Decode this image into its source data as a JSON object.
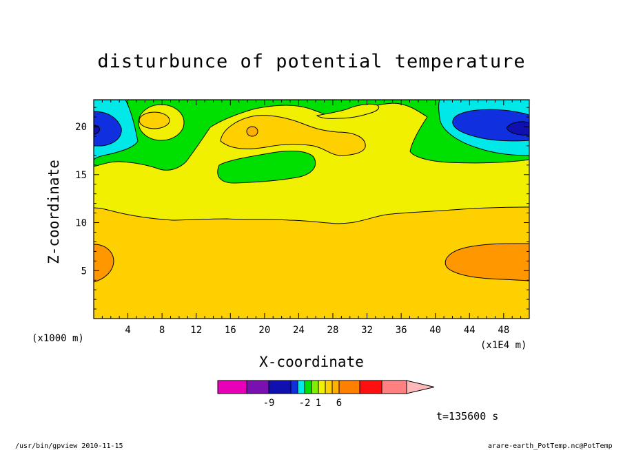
{
  "chart_data": {
    "type": "heatmap",
    "title": "disturbunce of potential temperature",
    "xlabel": "X-coordinate",
    "ylabel": "Z-coordinate",
    "x_unit_left": "(x1000 m)",
    "x_unit_right": "(x1E4 m)",
    "xlim": [
      0,
      51
    ],
    "ylim": [
      0,
      22.8
    ],
    "x_ticks": [
      4,
      8,
      12,
      16,
      20,
      24,
      28,
      32,
      36,
      40,
      44,
      48
    ],
    "y_ticks": [
      5,
      10,
      15,
      20
    ],
    "colorbar": {
      "colors": [
        "#e700b8",
        "#7a10b0",
        "#1010b0",
        "#1030e0",
        "#00e8e8",
        "#00e000",
        "#80f000",
        "#f0f000",
        "#ffd000",
        "#ffb000",
        "#ff8000",
        "#ff1010",
        "#ff8080",
        "#ffb8b8"
      ],
      "labels": [
        {
          "index": 2,
          "text": "-9"
        },
        {
          "index": 5,
          "text": "-2"
        },
        {
          "index": 7,
          "text": "1"
        },
        {
          "index": 10,
          "text": "6"
        }
      ]
    },
    "annotation": "t=135600 s",
    "footer_left": "/usr/bin/gpview  2010-11-15",
    "footer_right": "arare-earth_PotTemp.nc@PotTemp"
  }
}
